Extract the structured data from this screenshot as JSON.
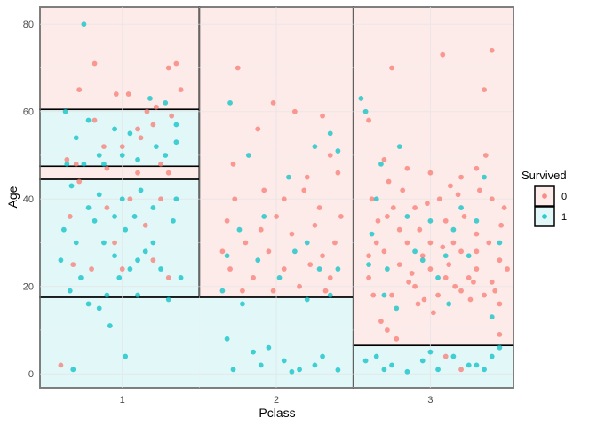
{
  "chart_data": {
    "type": "scatter",
    "xlabel": "Pclass",
    "ylabel": "Age",
    "xlim": [
      0.465,
      3.54
    ],
    "ylim": [
      -3.2,
      83.9
    ],
    "xticks": [
      "1",
      "2",
      "3"
    ],
    "yticks": [
      0,
      20,
      40,
      60,
      80
    ],
    "grid": true,
    "jitter": true,
    "legend": {
      "title": "Survived",
      "position": "right",
      "entries": [
        "0",
        "1"
      ]
    },
    "colors": {
      "0": "#F8766D",
      "1": "#00BFC4"
    },
    "region_fills": {
      "0": "#FDEBEA",
      "1": "#E2F7F8"
    },
    "regions": [
      {
        "pclass": [
          0.465,
          1.5
        ],
        "age": [
          60.5,
          83.9
        ],
        "predicted": 0
      },
      {
        "pclass": [
          0.465,
          1.5
        ],
        "age": [
          47.5,
          60.5
        ],
        "predicted": 1
      },
      {
        "pclass": [
          0.465,
          1.5
        ],
        "age": [
          44.5,
          47.5
        ],
        "predicted": 0
      },
      {
        "pclass": [
          0.465,
          1.5
        ],
        "age": [
          17.5,
          44.5
        ],
        "predicted": 1
      },
      {
        "pclass": [
          1.5,
          2.5
        ],
        "age": [
          17.5,
          83.9
        ],
        "predicted": 0
      },
      {
        "pclass": [
          0.465,
          2.5
        ],
        "age": [
          -3.2,
          17.5
        ],
        "predicted": 1
      },
      {
        "pclass": [
          2.5,
          3.54
        ],
        "age": [
          6.5,
          83.9
        ],
        "predicted": 0
      },
      {
        "pclass": [
          2.5,
          3.54
        ],
        "age": [
          -3.2,
          6.5
        ],
        "predicted": 1
      }
    ],
    "points_format": [
      "pclass_jittered",
      "age",
      "survived"
    ],
    "points": [
      [
        0.72,
        65,
        0
      ],
      [
        0.82,
        71,
        0
      ],
      [
        0.96,
        64,
        0
      ],
      [
        1.04,
        64,
        0
      ],
      [
        1.16,
        60,
        0
      ],
      [
        1.22,
        61,
        0
      ],
      [
        1.3,
        70,
        0
      ],
      [
        1.35,
        71,
        0
      ],
      [
        1.38,
        65,
        0
      ],
      [
        1.1,
        56,
        0
      ],
      [
        1.0,
        52,
        0
      ],
      [
        0.64,
        49,
        0
      ],
      [
        0.82,
        58,
        0
      ],
      [
        1.2,
        57,
        0
      ],
      [
        1.32,
        59,
        0
      ],
      [
        0.7,
        48,
        0
      ],
      [
        0.9,
        47,
        0
      ],
      [
        1.1,
        46,
        0
      ],
      [
        1.3,
        46,
        0
      ],
      [
        1.25,
        48,
        0
      ],
      [
        0.72,
        44,
        0
      ],
      [
        0.66,
        36,
        0
      ],
      [
        0.9,
        38,
        0
      ],
      [
        1.05,
        40,
        0
      ],
      [
        1.15,
        34,
        0
      ],
      [
        0.8,
        24,
        0
      ],
      [
        1.0,
        24,
        0
      ],
      [
        1.2,
        26,
        0
      ],
      [
        0.95,
        30,
        0
      ],
      [
        0.68,
        25,
        0
      ],
      [
        0.6,
        2,
        0
      ],
      [
        1.3,
        22,
        0
      ],
      [
        0.88,
        52,
        0
      ],
      [
        1.12,
        54,
        0
      ],
      [
        1.25,
        40,
        0
      ],
      [
        0.75,
        80,
        1
      ],
      [
        1.18,
        63,
        1
      ],
      [
        1.28,
        62,
        1
      ],
      [
        0.63,
        60,
        1
      ],
      [
        0.78,
        58,
        1
      ],
      [
        0.95,
        56,
        1
      ],
      [
        1.05,
        55,
        1
      ],
      [
        1.35,
        57,
        1
      ],
      [
        0.7,
        54,
        1
      ],
      [
        1.0,
        50,
        1
      ],
      [
        1.22,
        52,
        1
      ],
      [
        0.85,
        50,
        1
      ],
      [
        1.1,
        49,
        1
      ],
      [
        0.64,
        48,
        1
      ],
      [
        0.75,
        48,
        1
      ],
      [
        0.88,
        48,
        1
      ],
      [
        1.28,
        50,
        1
      ],
      [
        1.35,
        53,
        1
      ],
      [
        0.67,
        43,
        1
      ],
      [
        0.78,
        38,
        1
      ],
      [
        0.85,
        41,
        1
      ],
      [
        0.95,
        36,
        1
      ],
      [
        1.02,
        33,
        1
      ],
      [
        1.12,
        42,
        1
      ],
      [
        1.2,
        30,
        1
      ],
      [
        1.33,
        35,
        1
      ],
      [
        0.7,
        30,
        1
      ],
      [
        0.88,
        30,
        1
      ],
      [
        0.6,
        26,
        1
      ],
      [
        0.73,
        22,
        1
      ],
      [
        0.95,
        27,
        1
      ],
      [
        1.05,
        24,
        1
      ],
      [
        1.15,
        28,
        1
      ],
      [
        1.25,
        24,
        1
      ],
      [
        1.38,
        22,
        1
      ],
      [
        0.82,
        35,
        1
      ],
      [
        1.0,
        40,
        1
      ],
      [
        1.08,
        36,
        1
      ],
      [
        0.66,
        19,
        1
      ],
      [
        0.9,
        18,
        1
      ],
      [
        1.1,
        18,
        1
      ],
      [
        1.3,
        17,
        1
      ],
      [
        0.78,
        16,
        1
      ],
      [
        0.92,
        11,
        1
      ],
      [
        1.02,
        4,
        1
      ],
      [
        0.68,
        1,
        1
      ],
      [
        0.85,
        15,
        1
      ],
      [
        1.2,
        38,
        1
      ],
      [
        0.62,
        33,
        1
      ],
      [
        1.35,
        40,
        1
      ],
      [
        0.98,
        22,
        1
      ],
      [
        1.1,
        26,
        1
      ],
      [
        1.75,
        70,
        0
      ],
      [
        1.98,
        62,
        0
      ],
      [
        2.12,
        60,
        0
      ],
      [
        2.3,
        59,
        0
      ],
      [
        1.88,
        56,
        0
      ],
      [
        2.2,
        45,
        0
      ],
      [
        2.35,
        50,
        0
      ],
      [
        1.72,
        48,
        0
      ],
      [
        1.92,
        42,
        0
      ],
      [
        2.05,
        40,
        0
      ],
      [
        2.28,
        38,
        0
      ],
      [
        2.4,
        46,
        0
      ],
      [
        1.68,
        35,
        0
      ],
      [
        1.8,
        30,
        0
      ],
      [
        1.95,
        28,
        0
      ],
      [
        2.1,
        32,
        0
      ],
      [
        2.22,
        25,
        0
      ],
      [
        2.38,
        30,
        0
      ],
      [
        1.7,
        24,
        0
      ],
      [
        1.85,
        22,
        0
      ],
      [
        2.0,
        36,
        0
      ],
      [
        2.15,
        20,
        0
      ],
      [
        2.3,
        27,
        0
      ],
      [
        1.78,
        19,
        0
      ],
      [
        2.05,
        24,
        0
      ],
      [
        2.25,
        34,
        0
      ],
      [
        1.9,
        33,
        0
      ],
      [
        2.35,
        22,
        0
      ],
      [
        1.65,
        28,
        0
      ],
      [
        2.42,
        36,
        0
      ],
      [
        1.98,
        19,
        0
      ],
      [
        2.18,
        42,
        0
      ],
      [
        1.73,
        40,
        0
      ],
      [
        2.32,
        19,
        0
      ],
      [
        1.7,
        62,
        1
      ],
      [
        2.35,
        55,
        1
      ],
      [
        2.4,
        51,
        1
      ],
      [
        1.82,
        50,
        1
      ],
      [
        2.08,
        45,
        1
      ],
      [
        2.25,
        52,
        1
      ],
      [
        1.92,
        36,
        1
      ],
      [
        1.76,
        33,
        1
      ],
      [
        2.12,
        28,
        1
      ],
      [
        2.28,
        24,
        1
      ],
      [
        1.68,
        27,
        1
      ],
      [
        1.88,
        26,
        1
      ],
      [
        2.02,
        22,
        1
      ],
      [
        2.2,
        30,
        1
      ],
      [
        2.4,
        24,
        1
      ],
      [
        1.65,
        19,
        1
      ],
      [
        2.35,
        18,
        1
      ],
      [
        2.2,
        17,
        1
      ],
      [
        1.78,
        16,
        1
      ],
      [
        1.68,
        8,
        1
      ],
      [
        1.95,
        6,
        1
      ],
      [
        2.05,
        3,
        1
      ],
      [
        2.15,
        1,
        1
      ],
      [
        2.3,
        4,
        1
      ],
      [
        1.9,
        2,
        1
      ],
      [
        1.72,
        1,
        1
      ],
      [
        2.1,
        0.5,
        1
      ],
      [
        1.85,
        5,
        1
      ],
      [
        2.25,
        2,
        1
      ],
      [
        2.4,
        0.9,
        1
      ],
      [
        2.6,
        58,
        0
      ],
      [
        2.75,
        70,
        0
      ],
      [
        3.08,
        73,
        0
      ],
      [
        3.4,
        74,
        0
      ],
      [
        3.35,
        65,
        0
      ],
      [
        2.7,
        49,
        0
      ],
      [
        2.85,
        47,
        0
      ],
      [
        3.0,
        46,
        0
      ],
      [
        3.2,
        45,
        0
      ],
      [
        3.3,
        47,
        0
      ],
      [
        2.62,
        40,
        0
      ],
      [
        2.72,
        36,
        0
      ],
      [
        2.8,
        33,
        0
      ],
      [
        2.9,
        38,
        0
      ],
      [
        3.0,
        30,
        0
      ],
      [
        3.1,
        35,
        0
      ],
      [
        3.2,
        28,
        0
      ],
      [
        3.3,
        32,
        0
      ],
      [
        3.4,
        40,
        0
      ],
      [
        3.48,
        38,
        0
      ],
      [
        2.6,
        22,
        0
      ],
      [
        2.7,
        28,
        0
      ],
      [
        2.8,
        25,
        0
      ],
      [
        2.9,
        20,
        0
      ],
      [
        3.0,
        24,
        0
      ],
      [
        3.1,
        22,
        0
      ],
      [
        3.2,
        19,
        0
      ],
      [
        3.3,
        24,
        0
      ],
      [
        3.4,
        21,
        0
      ],
      [
        3.45,
        26,
        0
      ],
      [
        2.65,
        30,
        0
      ],
      [
        2.75,
        18,
        0
      ],
      [
        2.85,
        30,
        0
      ],
      [
        2.95,
        27,
        0
      ],
      [
        3.05,
        18,
        0
      ],
      [
        3.15,
        30,
        0
      ],
      [
        3.25,
        22,
        0
      ],
      [
        3.35,
        18,
        0
      ],
      [
        3.45,
        16,
        0
      ],
      [
        2.68,
        12,
        0
      ],
      [
        2.78,
        8,
        0
      ],
      [
        2.92,
        16,
        0
      ],
      [
        3.02,
        14,
        0
      ],
      [
        3.12,
        25,
        0
      ],
      [
        3.22,
        36,
        0
      ],
      [
        3.32,
        42,
        0
      ],
      [
        2.82,
        42,
        0
      ],
      [
        2.98,
        39,
        0
      ],
      [
        3.18,
        41,
        0
      ],
      [
        3.38,
        30,
        0
      ],
      [
        2.63,
        18,
        0
      ],
      [
        2.88,
        23,
        0
      ],
      [
        3.08,
        29,
        0
      ],
      [
        3.28,
        21,
        0
      ],
      [
        3.42,
        19,
        0
      ],
      [
        2.73,
        44,
        0
      ],
      [
        2.93,
        33,
        0
      ],
      [
        3.13,
        43,
        0
      ],
      [
        3.36,
        50,
        0
      ],
      [
        3.5,
        24,
        0
      ],
      [
        2.66,
        35,
        0
      ],
      [
        2.86,
        21,
        0
      ],
      [
        3.06,
        40,
        0
      ],
      [
        3.26,
        17,
        0
      ],
      [
        3.46,
        34,
        0
      ],
      [
        2.76,
        38,
        0
      ],
      [
        2.96,
        17,
        0
      ],
      [
        3.16,
        20,
        0
      ],
      [
        3.3,
        28,
        0
      ],
      [
        2.6,
        27,
        0
      ],
      [
        2.72,
        10,
        0
      ],
      [
        3.2,
        1,
        0
      ],
      [
        3.1,
        4,
        0
      ],
      [
        3.45,
        9,
        0
      ],
      [
        2.55,
        63,
        1
      ],
      [
        2.58,
        60,
        1
      ],
      [
        2.68,
        48,
        1
      ],
      [
        2.8,
        52,
        1
      ],
      [
        2.62,
        32,
        1
      ],
      [
        2.72,
        24,
        1
      ],
      [
        2.85,
        36,
        1
      ],
      [
        2.95,
        26,
        1
      ],
      [
        3.05,
        22,
        1
      ],
      [
        3.15,
        33,
        1
      ],
      [
        3.25,
        27,
        1
      ],
      [
        3.35,
        45,
        1
      ],
      [
        3.45,
        30,
        1
      ],
      [
        2.7,
        18,
        1
      ],
      [
        2.9,
        28,
        1
      ],
      [
        3.1,
        27,
        1
      ],
      [
        3.3,
        35,
        1
      ],
      [
        2.65,
        40,
        1
      ],
      [
        3.2,
        38,
        1
      ],
      [
        3.0,
        35,
        1
      ],
      [
        3.4,
        13,
        1
      ],
      [
        2.6,
        25,
        1
      ],
      [
        2.78,
        15,
        1
      ],
      [
        3.12,
        16,
        1
      ],
      [
        2.65,
        4,
        1
      ],
      [
        2.75,
        2,
        1
      ],
      [
        2.85,
        0.5,
        1
      ],
      [
        2.95,
        3,
        1
      ],
      [
        3.05,
        1,
        1
      ],
      [
        3.15,
        4,
        1
      ],
      [
        3.25,
        2,
        1
      ],
      [
        3.35,
        1,
        1
      ],
      [
        3.45,
        6,
        1
      ],
      [
        2.7,
        1,
        1
      ],
      [
        3.0,
        5,
        1
      ],
      [
        3.3,
        2,
        1
      ],
      [
        2.58,
        3,
        1
      ],
      [
        3.4,
        4,
        1
      ]
    ]
  }
}
